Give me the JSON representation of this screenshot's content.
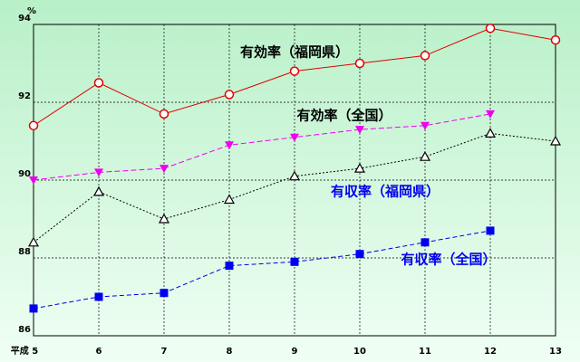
{
  "chart_data": {
    "type": "line",
    "y_unit": "%",
    "categories": [
      "平成 5",
      "6",
      "7",
      "8",
      "9",
      "10",
      "11",
      "12",
      "13"
    ],
    "ylim": [
      86,
      94
    ],
    "yticks": [
      86,
      88,
      90,
      92,
      94
    ],
    "grid": true,
    "series": [
      {
        "name": "有効率（福岡県）",
        "color": "#e00000",
        "marker": "circle",
        "values": [
          91.4,
          92.5,
          91.7,
          92.2,
          92.8,
          93.0,
          93.2,
          93.9,
          93.6
        ]
      },
      {
        "name": "有効率（全国）",
        "color": "#ee00ee",
        "marker": "triangle-down",
        "values": [
          90.0,
          90.2,
          90.3,
          90.9,
          91.1,
          91.3,
          91.4,
          91.7,
          null
        ]
      },
      {
        "name": "有収率（福岡県）",
        "color": "#000000",
        "marker": "triangle",
        "values": [
          88.4,
          89.7,
          89.0,
          89.5,
          90.1,
          90.3,
          90.6,
          91.2,
          91.0
        ]
      },
      {
        "name": "有収率（全国）",
        "color": "#0000ee",
        "marker": "square",
        "values": [
          86.7,
          87.0,
          87.1,
          87.8,
          87.9,
          88.1,
          88.4,
          88.7,
          null
        ]
      }
    ]
  }
}
